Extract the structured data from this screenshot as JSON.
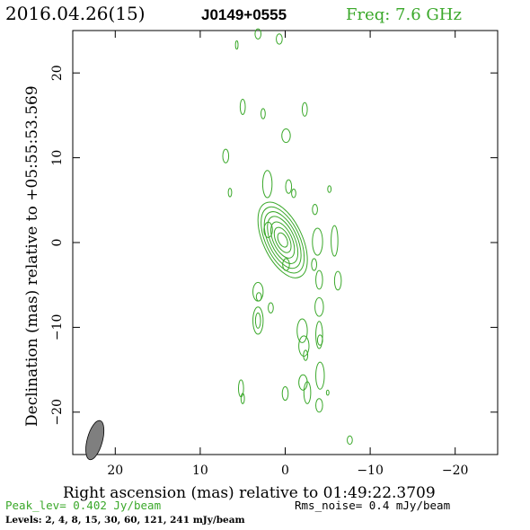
{
  "header": {
    "date": "2016.04.26(15)",
    "source": "J0149+0555",
    "freq": "Freq: 7.6 GHz"
  },
  "colors": {
    "contour": "#3aa82a",
    "frame": "#000000",
    "beam_fill": "#7f7f7f",
    "green_text": "#3aa82a"
  },
  "footer": {
    "peak": "Peak_lev=  0.402 Jy/beam",
    "rms": "Rms_noise=  0.4 mJy/beam",
    "levels": "Levels:   2,   4,   8,  15,  30,  60, 121, 241 mJy/beam"
  },
  "chart_data": {
    "type": "contour",
    "xlabel": "Right ascension (mas) relative to 01:49:22.3709",
    "ylabel": "Declination (mas) relative to +05:55:53.569",
    "xlim": [
      25,
      -25
    ],
    "ylim": [
      -25,
      25
    ],
    "xticks": [
      20,
      10,
      0,
      -10,
      -20
    ],
    "xtick_labels": [
      "20",
      "10",
      "0",
      "−10",
      "−20"
    ],
    "yticks": [
      -20,
      -10,
      0,
      10,
      20
    ],
    "ytick_labels": [
      "−20",
      "−10",
      "0",
      "10",
      "20"
    ],
    "contour_levels_mJy": [
      2,
      4,
      8,
      15,
      30,
      60,
      121,
      241
    ],
    "peak_Jy_per_beam": 0.402,
    "rms_mJy_per_beam": 0.4,
    "core": {
      "center": [
        0.3,
        0.3
      ],
      "rings": [
        {
          "rx": 2.3,
          "ry": 4.8,
          "angle": -25
        },
        {
          "rx": 2.0,
          "ry": 4.2,
          "angle": -25
        },
        {
          "rx": 1.7,
          "ry": 3.6,
          "angle": -25
        },
        {
          "rx": 1.4,
          "ry": 3.0,
          "angle": -25
        },
        {
          "rx": 1.1,
          "ry": 2.3,
          "angle": -25
        },
        {
          "rx": 0.8,
          "ry": 1.6,
          "angle": -25
        },
        {
          "rx": 0.5,
          "ry": 0.9,
          "angle": -25
        }
      ]
    },
    "islands": [
      {
        "x": 5.7,
        "y": 23.3,
        "rx": 0.15,
        "ry": 0.5
      },
      {
        "x": 3.2,
        "y": 24.6,
        "rx": 0.35,
        "ry": 0.6
      },
      {
        "x": 0.7,
        "y": 24.0,
        "rx": 0.35,
        "ry": 0.6
      },
      {
        "x": 5.0,
        "y": 16.0,
        "rx": 0.3,
        "ry": 0.9
      },
      {
        "x": 2.6,
        "y": 15.2,
        "rx": 0.25,
        "ry": 0.6
      },
      {
        "x": -2.3,
        "y": 15.7,
        "rx": 0.3,
        "ry": 0.8
      },
      {
        "x": -0.1,
        "y": 12.6,
        "rx": 0.5,
        "ry": 0.8
      },
      {
        "x": 7.0,
        "y": 10.2,
        "rx": 0.35,
        "ry": 0.8
      },
      {
        "x": 6.5,
        "y": 5.9,
        "rx": 0.2,
        "ry": 0.5
      },
      {
        "x": 2.1,
        "y": 6.9,
        "rx": 0.55,
        "ry": 1.6
      },
      {
        "x": -5.2,
        "y": 6.3,
        "rx": 0.2,
        "ry": 0.4
      },
      {
        "x": -0.4,
        "y": 6.6,
        "rx": 0.35,
        "ry": 0.8
      },
      {
        "x": -1.0,
        "y": 5.8,
        "rx": 0.25,
        "ry": 0.5
      },
      {
        "x": 2.0,
        "y": 1.5,
        "rx": 0.5,
        "ry": 0.9
      },
      {
        "x": -3.5,
        "y": 3.9,
        "rx": 0.3,
        "ry": 0.6
      },
      {
        "x": -3.8,
        "y": 0.1,
        "rx": 0.6,
        "ry": 1.6
      },
      {
        "x": -3.4,
        "y": -2.6,
        "rx": 0.3,
        "ry": 0.7
      },
      {
        "x": -5.8,
        "y": 0.2,
        "rx": 0.4,
        "ry": 1.8
      },
      {
        "x": -4.0,
        "y": -4.4,
        "rx": 0.4,
        "ry": 1.1
      },
      {
        "x": -6.2,
        "y": -4.5,
        "rx": 0.4,
        "ry": 1.1
      },
      {
        "x": -0.1,
        "y": -2.6,
        "rx": 0.4,
        "ry": 0.7
      },
      {
        "x": 3.2,
        "y": -5.8,
        "rx": 0.6,
        "ry": 1.1
      },
      {
        "x": 3.1,
        "y": -6.4,
        "rx": 0.3,
        "ry": 0.5
      },
      {
        "x": 1.7,
        "y": -7.7,
        "rx": 0.3,
        "ry": 0.6
      },
      {
        "x": 3.2,
        "y": -9.2,
        "rx": 0.6,
        "ry": 1.6
      },
      {
        "x": 3.2,
        "y": -9.2,
        "rx": 0.3,
        "ry": 0.9
      },
      {
        "x": -4.0,
        "y": -7.6,
        "rx": 0.5,
        "ry": 1.1
      },
      {
        "x": -2.0,
        "y": -10.4,
        "rx": 0.6,
        "ry": 1.4
      },
      {
        "x": -4.0,
        "y": -10.9,
        "rx": 0.4,
        "ry": 1.6
      },
      {
        "x": -4.1,
        "y": -11.5,
        "rx": 0.3,
        "ry": 0.6
      },
      {
        "x": -4.1,
        "y": -15.7,
        "rx": 0.5,
        "ry": 1.6
      },
      {
        "x": -2.2,
        "y": -12.2,
        "rx": 0.6,
        "ry": 1.2
      },
      {
        "x": -2.4,
        "y": -13.3,
        "rx": 0.25,
        "ry": 0.6
      },
      {
        "x": -2.1,
        "y": -16.5,
        "rx": 0.5,
        "ry": 0.9
      },
      {
        "x": -4.0,
        "y": -19.2,
        "rx": 0.4,
        "ry": 0.8
      },
      {
        "x": 5.2,
        "y": -17.2,
        "rx": 0.3,
        "ry": 1.0
      },
      {
        "x": 5.0,
        "y": -18.4,
        "rx": 0.2,
        "ry": 0.6
      },
      {
        "x": 0.0,
        "y": -17.8,
        "rx": 0.35,
        "ry": 0.8
      },
      {
        "x": -2.6,
        "y": -17.7,
        "rx": 0.4,
        "ry": 1.3
      },
      {
        "x": -5.0,
        "y": -17.7,
        "rx": 0.15,
        "ry": 0.3
      },
      {
        "x": -7.6,
        "y": -23.3,
        "rx": 0.3,
        "ry": 0.5
      }
    ],
    "beam": {
      "x": 22.4,
      "y": -23.3,
      "major": 2.5,
      "minor": 1.0,
      "angle": 15
    }
  }
}
